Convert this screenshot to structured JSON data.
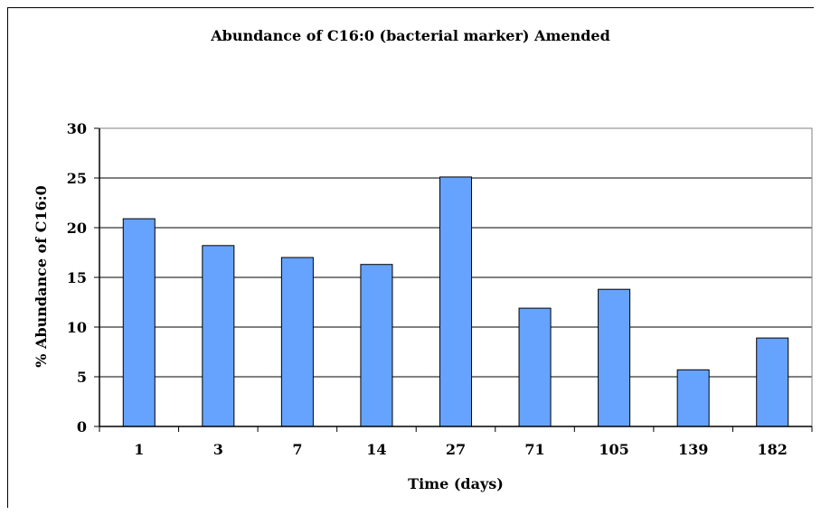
{
  "chart_data": {
    "type": "bar",
    "title": "Abundance of C16:0 (bacterial marker) Amended",
    "xlabel": "Time (days)",
    "ylabel": "% Abundance of C16:0",
    "categories": [
      "1",
      "3",
      "7",
      "14",
      "27",
      "71",
      "105",
      "139",
      "182"
    ],
    "values": [
      20.9,
      18.2,
      17.0,
      16.3,
      25.1,
      11.9,
      13.8,
      5.7,
      8.9
    ],
    "ylim": [
      0,
      30
    ],
    "yticks": [
      0,
      5,
      10,
      15,
      20,
      25,
      30
    ],
    "grid": true,
    "legend": "none",
    "colors": {
      "bar": "#66a3ff",
      "bar_stroke": "#000000",
      "grid": "#000000"
    }
  }
}
